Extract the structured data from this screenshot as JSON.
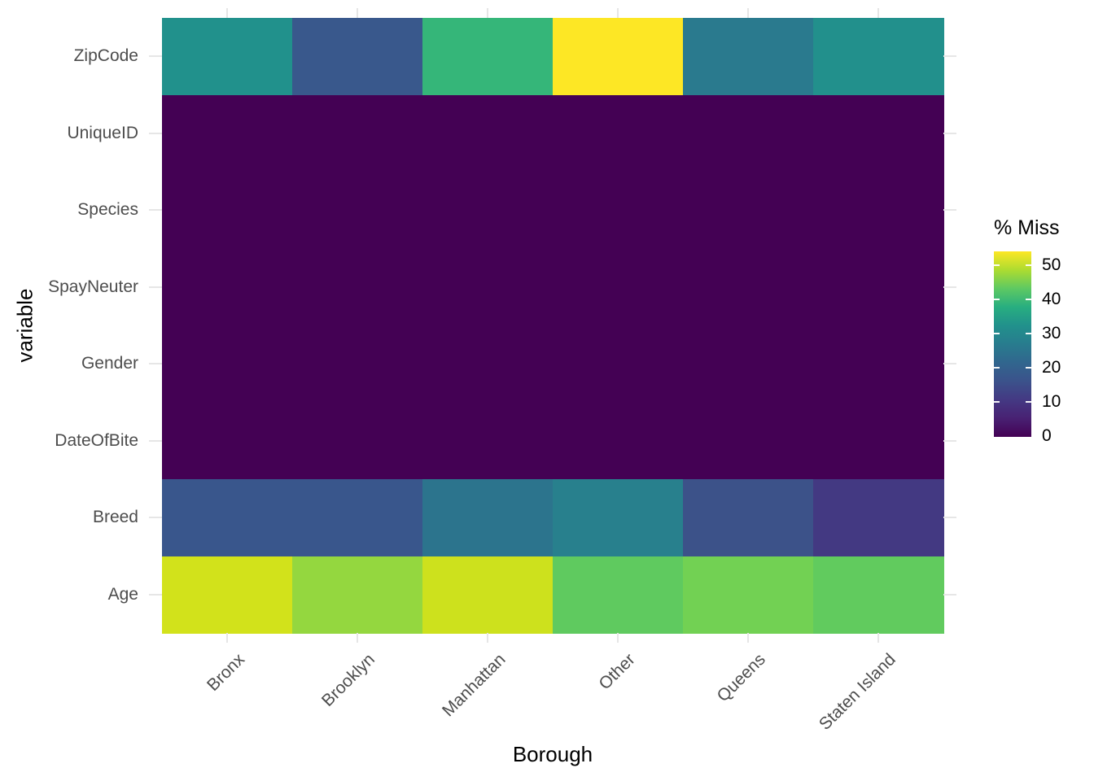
{
  "axes": {
    "x_title": "Borough",
    "y_title": "variable",
    "x_tick_labels": [
      "Bronx",
      "Brooklyn",
      "Manhattan",
      "Other",
      "Queens",
      "Staten Island"
    ],
    "y_tick_labels": [
      "ZipCode",
      "UniqueID",
      "Species",
      "SpayNeuter",
      "Gender",
      "DateOfBite",
      "Breed",
      "Age"
    ]
  },
  "legend": {
    "title": "% Miss",
    "tick_labels": [
      "50",
      "40",
      "30",
      "20",
      "10",
      "0"
    ],
    "tick_values": [
      50,
      40,
      30,
      20,
      10,
      0
    ]
  },
  "colors": {
    "background": "#ffffff",
    "grid_line": "#e6e6e6",
    "axis_text": "#4d4d4d",
    "title_text": "#000000",
    "zero_cell": "#440154",
    "max_cell": "#fde725"
  },
  "chart_data": {
    "type": "heatmap",
    "title": "",
    "xlabel": "Borough",
    "ylabel": "variable",
    "legend_title": "% Miss",
    "legend_position": "right",
    "palette": "viridis",
    "color_domain": [
      0,
      54
    ],
    "x_categories": [
      "Bronx",
      "Brooklyn",
      "Manhattan",
      "Other",
      "Queens",
      "Staten Island"
    ],
    "y_categories_top_to_bottom": [
      "ZipCode",
      "UniqueID",
      "Species",
      "SpayNeuter",
      "Gender",
      "DateOfBite",
      "Breed",
      "Age"
    ],
    "percent_missing": [
      [
        32,
        18,
        39,
        54,
        26,
        32
      ],
      [
        0,
        0,
        0,
        0,
        0,
        0
      ],
      [
        0,
        0,
        0,
        0,
        0,
        0
      ],
      [
        0,
        0,
        0,
        0,
        0,
        0
      ],
      [
        0,
        0,
        0,
        0,
        0,
        0
      ],
      [
        0,
        0,
        0,
        0,
        0,
        0
      ],
      [
        17,
        17,
        25,
        28,
        16,
        11
      ],
      [
        51,
        47,
        50,
        43,
        45,
        43
      ]
    ],
    "cell_colors": [
      [
        "#21918c",
        "#39588c",
        "#35b679",
        "#fde725",
        "#2a7a8e",
        "#22908c"
      ],
      [
        "#440154",
        "#440154",
        "#440154",
        "#440154",
        "#440154",
        "#440154"
      ],
      [
        "#440154",
        "#440154",
        "#440154",
        "#440154",
        "#440154",
        "#440154"
      ],
      [
        "#440154",
        "#440154",
        "#440154",
        "#440154",
        "#440154",
        "#440154"
      ],
      [
        "#440154",
        "#440154",
        "#440154",
        "#440154",
        "#440154",
        "#440154"
      ],
      [
        "#440154",
        "#440154",
        "#440154",
        "#440154",
        "#440154",
        "#440154"
      ],
      [
        "#39568c",
        "#39568c",
        "#2c748d",
        "#28808d",
        "#3c5289",
        "#433982"
      ],
      [
        "#d2e21b",
        "#94d73f",
        "#cde11d",
        "#5fca5f",
        "#72d153",
        "#61cb5e"
      ]
    ],
    "colorbar_tick_values": [
      50,
      40,
      30,
      20,
      10,
      0
    ],
    "grid": true
  }
}
